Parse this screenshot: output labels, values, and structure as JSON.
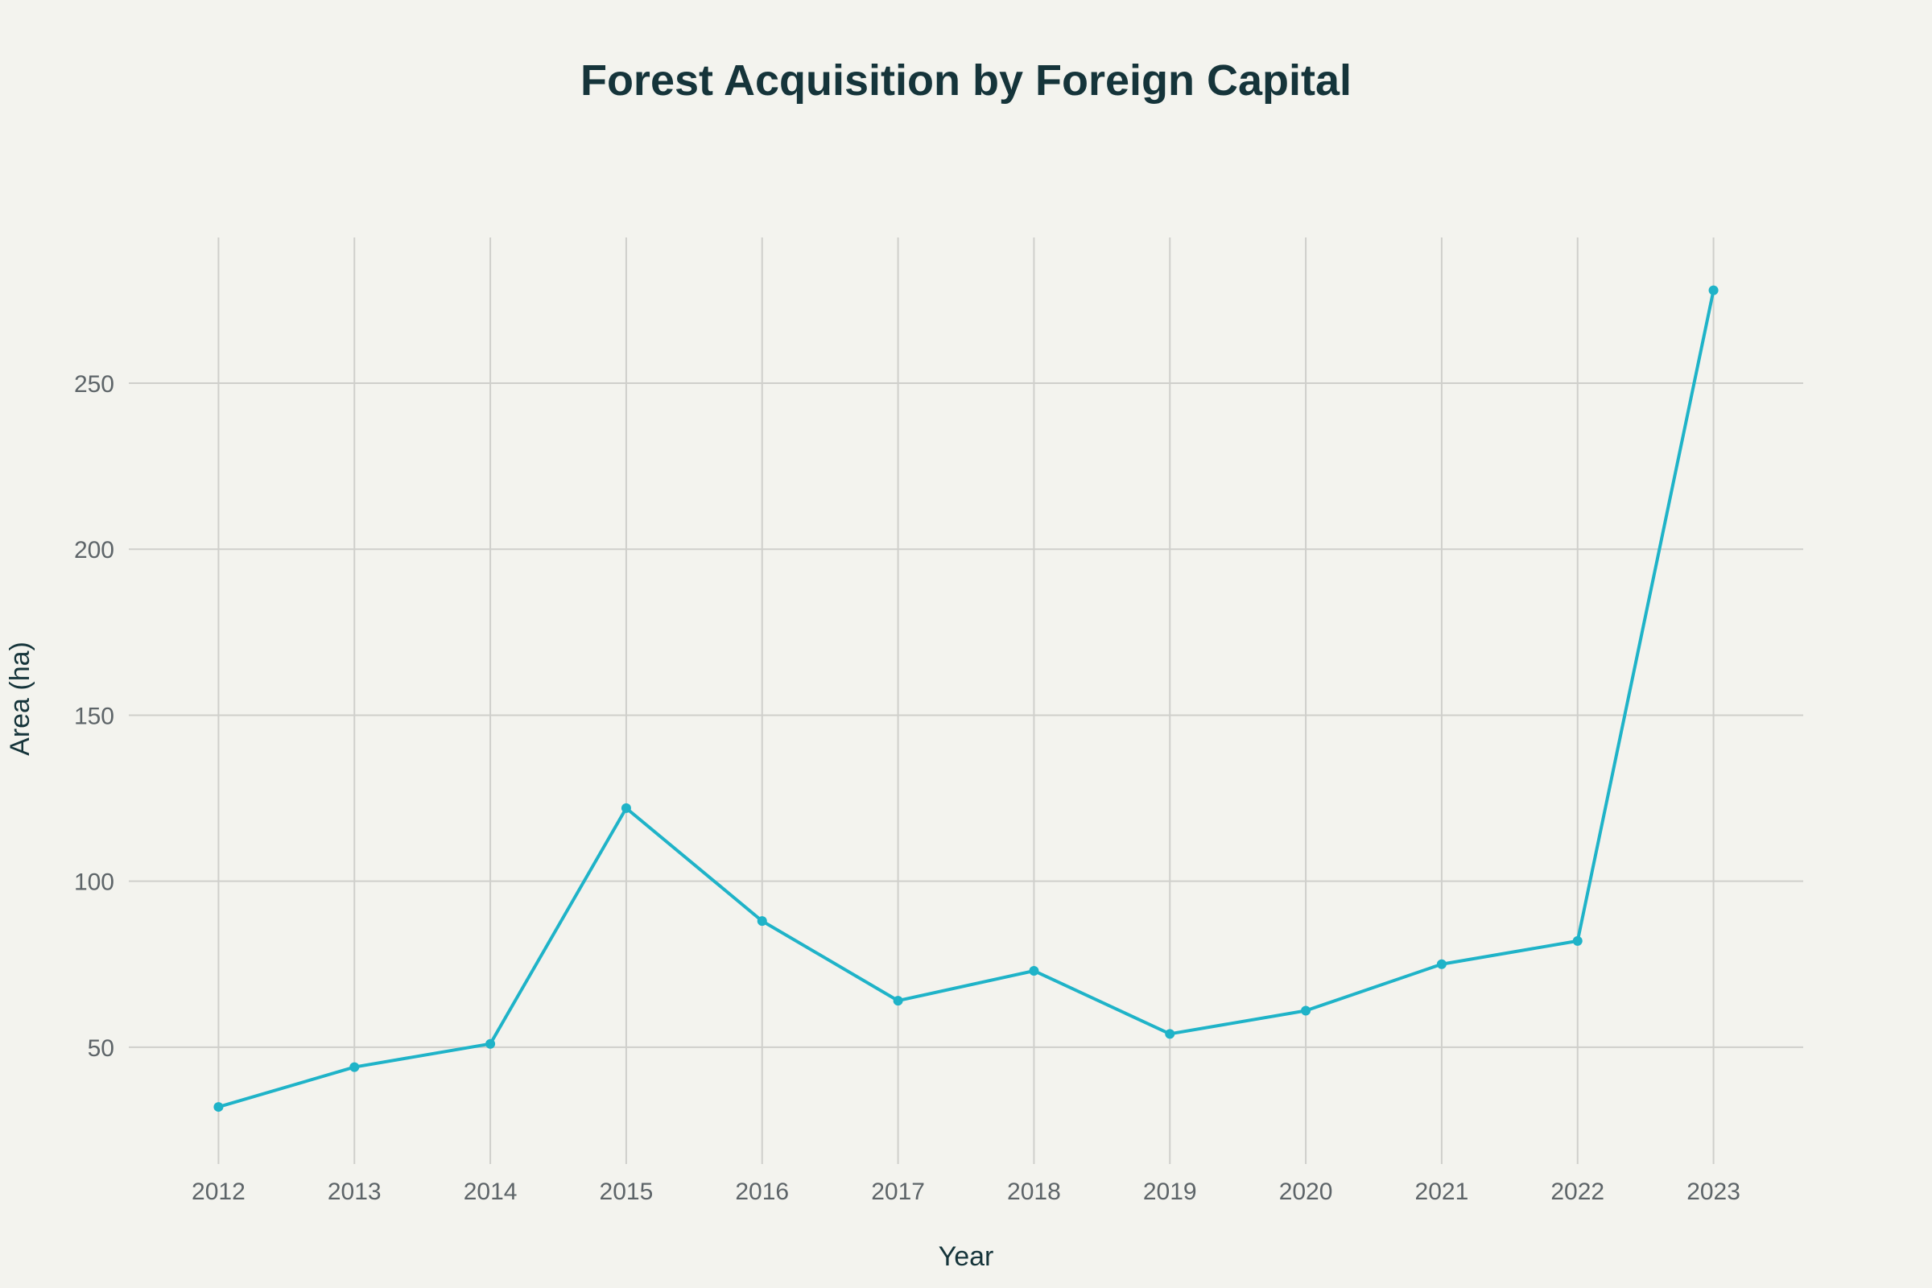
{
  "chart_data": {
    "type": "line",
    "title": "Forest Acquisition by Foreign Capital",
    "xlabel": "Year",
    "ylabel": "Area (ha)",
    "x": [
      2012,
      2013,
      2014,
      2015,
      2016,
      2017,
      2018,
      2019,
      2020,
      2021,
      2022,
      2023
    ],
    "x_tick_labels": [
      "2012",
      "2013",
      "2014",
      "2015",
      "2016",
      "2017",
      "2018",
      "2019",
      "2020",
      "2021",
      "2022",
      "2023"
    ],
    "series": [
      {
        "name": "Area (ha)",
        "values": [
          32,
          44,
          51,
          122,
          88,
          64,
          73,
          54,
          61,
          75,
          82,
          278
        ],
        "color": "#1fb3c8"
      }
    ],
    "y_ticks": [
      50,
      100,
      150,
      200,
      250
    ],
    "y_tick_labels": [
      "50",
      "100",
      "150",
      "200",
      "250"
    ],
    "xlim": [
      2011.34,
      2023.66
    ],
    "ylim": [
      14.8,
      293.9
    ],
    "grid": true,
    "legend": "none"
  }
}
